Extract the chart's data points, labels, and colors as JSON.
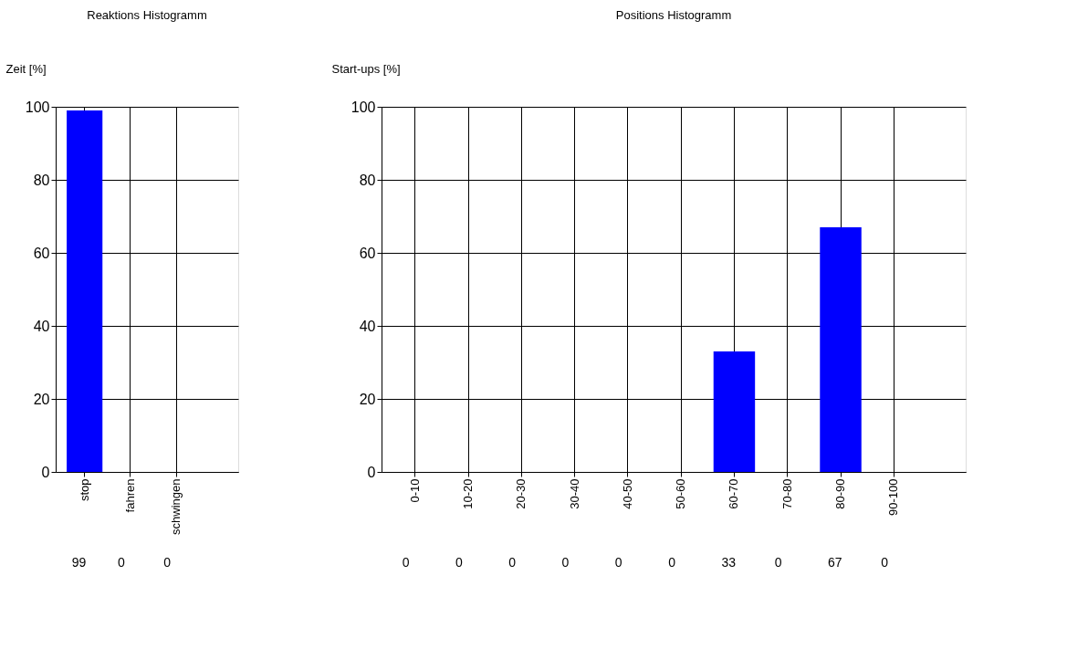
{
  "chart_data": [
    {
      "type": "bar",
      "title": "Reaktions Histogramm",
      "ylabel": "Zeit [%]",
      "categories": [
        "stop",
        "fahren",
        "schwingen"
      ],
      "series": [
        {
          "color": "#0000ff",
          "values": [
            99,
            0,
            0
          ]
        }
      ],
      "ylim": [
        0,
        100
      ],
      "yticks": [
        0,
        20,
        40,
        60,
        80,
        100
      ],
      "grid": true,
      "data_labels": true
    },
    {
      "type": "bar",
      "title": "Positions Histogramm",
      "ylabel": "Start-ups [%]",
      "categories": [
        "0-10",
        "10-20",
        "20-30",
        "30-40",
        "40-50",
        "50-60",
        "60-70",
        "70-80",
        "80-90",
        "90-100"
      ],
      "series": [
        {
          "color": "#0000ff",
          "values": [
            0,
            0,
            0,
            0,
            0,
            0,
            33,
            0,
            67,
            0
          ]
        }
      ],
      "ylim": [
        0,
        100
      ],
      "yticks": [
        0,
        20,
        40,
        60,
        80,
        100
      ],
      "grid": true,
      "data_labels": true
    }
  ]
}
